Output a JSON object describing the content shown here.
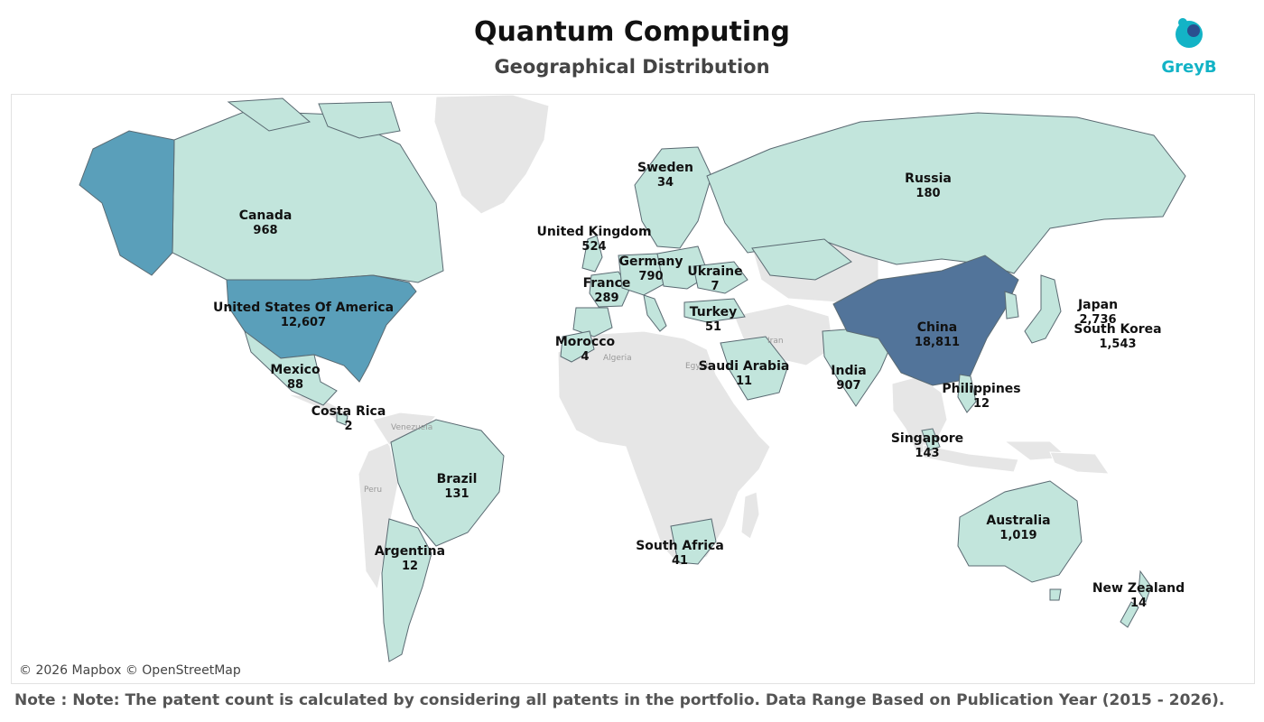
{
  "header": {
    "title": "Quantum Computing",
    "subtitle": "Geographical Distribution"
  },
  "logo": {
    "text": "GreyB",
    "color": "#13b3c6"
  },
  "map": {
    "attribution": "© 2026 Mapbox © OpenStreetMap",
    "base_labels": [
      "Iran",
      "Algeria",
      "Egypt",
      "Venezuela",
      "Peru"
    ],
    "colors": {
      "light": "#c2e5dc",
      "medium": "#5a9fba",
      "dark": "#52749a",
      "unselected": "#e6e6e6",
      "border": "#5a6a72"
    },
    "countries": [
      {
        "name": "China",
        "count": "18,811",
        "value": 18811,
        "shade": "dark"
      },
      {
        "name": "United States Of America",
        "count": "12,607",
        "value": 12607,
        "shade": "medium"
      },
      {
        "name": "Japan",
        "count": "2,736",
        "value": 2736,
        "shade": "light"
      },
      {
        "name": "South Korea",
        "count": "1,543",
        "value": 1543,
        "shade": "light"
      },
      {
        "name": "Australia",
        "count": "1,019",
        "value": 1019,
        "shade": "light"
      },
      {
        "name": "Canada",
        "count": "968",
        "value": 968,
        "shade": "light"
      },
      {
        "name": "India",
        "count": "907",
        "value": 907,
        "shade": "light"
      },
      {
        "name": "Germany",
        "count": "790",
        "value": 790,
        "shade": "light"
      },
      {
        "name": "United Kingdom",
        "count": "524",
        "value": 524,
        "shade": "light"
      },
      {
        "name": "France",
        "count": "289",
        "value": 289,
        "shade": "light"
      },
      {
        "name": "Russia",
        "count": "180",
        "value": 180,
        "shade": "light"
      },
      {
        "name": "Singapore",
        "count": "143",
        "value": 143,
        "shade": "light"
      },
      {
        "name": "Brazil",
        "count": "131",
        "value": 131,
        "shade": "light"
      },
      {
        "name": "Mexico",
        "count": "88",
        "value": 88,
        "shade": "light"
      },
      {
        "name": "Turkey",
        "count": "51",
        "value": 51,
        "shade": "light"
      },
      {
        "name": "South Africa",
        "count": "41",
        "value": 41,
        "shade": "light"
      },
      {
        "name": "Sweden",
        "count": "34",
        "value": 34,
        "shade": "light"
      },
      {
        "name": "New Zealand",
        "count": "14",
        "value": 14,
        "shade": "light"
      },
      {
        "name": "Argentina",
        "count": "12",
        "value": 12,
        "shade": "light"
      },
      {
        "name": "Philippines",
        "count": "12",
        "value": 12,
        "shade": "light"
      },
      {
        "name": "Saudi Arabia",
        "count": "11",
        "value": 11,
        "shade": "light"
      },
      {
        "name": "Ukraine",
        "count": "7",
        "value": 7,
        "shade": "light"
      },
      {
        "name": "Morocco",
        "count": "4",
        "value": 4,
        "shade": "light"
      },
      {
        "name": "Costa Rica",
        "count": "2",
        "value": 2,
        "shade": "light"
      }
    ]
  },
  "footer": {
    "note": "Note : Note: The patent count is calculated by considering all patents in the portfolio. Data Range Based on Publication Year (2015 - 2026)."
  }
}
